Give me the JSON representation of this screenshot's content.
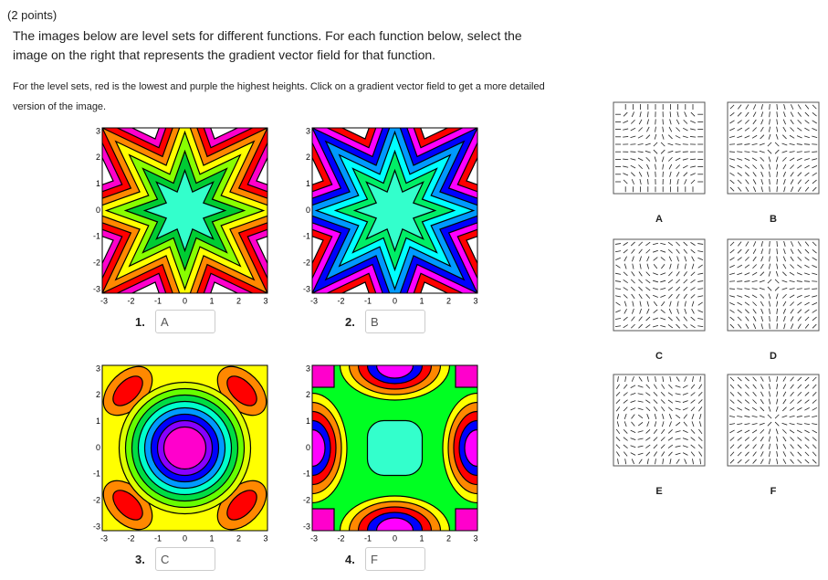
{
  "header": {
    "points": "(2 points)",
    "instructions": "The images below are level sets for different functions. For each function below, select the image on the right that represents the gradient vector field for that function.",
    "note": "For the level sets, red is the lowest and purple the highest heights. Click on a gradient vector field to get a more detailed version of the image."
  },
  "axis_ticks": [
    "-3",
    "-2",
    "-1",
    "0",
    "1",
    "2",
    "3"
  ],
  "plots": [
    {
      "label": "1.",
      "answer": "A"
    },
    {
      "label": "2.",
      "answer": "B"
    },
    {
      "label": "3.",
      "answer": "C"
    },
    {
      "label": "4.",
      "answer": "F"
    }
  ],
  "fields": [
    "A",
    "B",
    "C",
    "D",
    "E",
    "F"
  ]
}
